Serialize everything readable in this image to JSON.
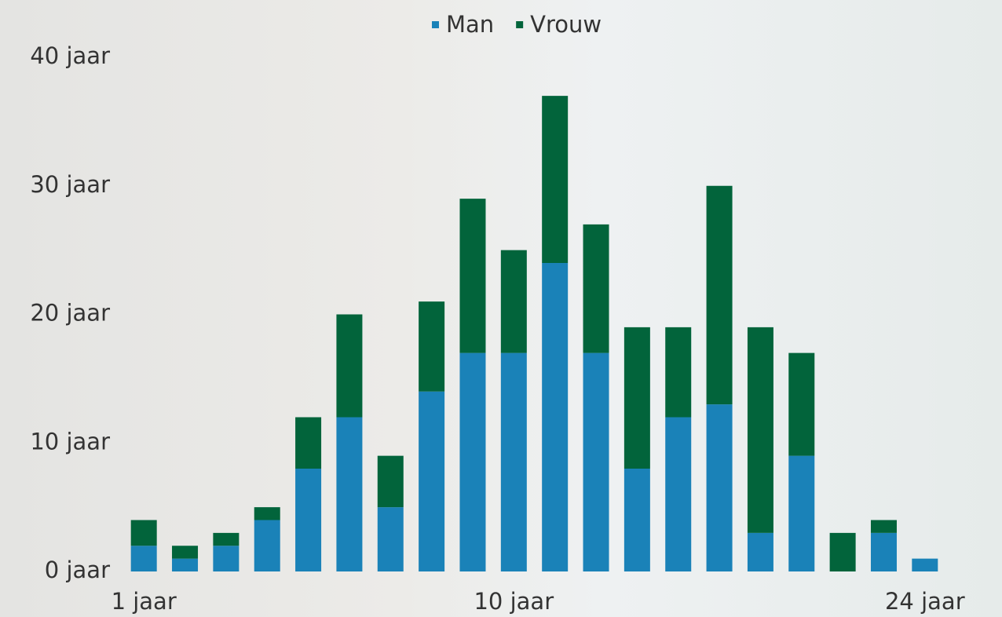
{
  "chart_data": {
    "type": "stacked_bar",
    "categories": [
      "1 jaar",
      null,
      null,
      null,
      null,
      null,
      null,
      null,
      null,
      "10 jaar",
      null,
      null,
      null,
      null,
      null,
      null,
      null,
      null,
      null,
      "24 jaar"
    ],
    "series": [
      {
        "name": "Man",
        "color": "#1a82b8",
        "values": [
          2,
          1,
          2,
          4,
          8,
          12,
          5,
          14,
          17,
          17,
          24,
          17,
          8,
          12,
          13,
          3,
          9,
          0,
          3,
          1
        ]
      },
      {
        "name": "Vrouw",
        "color": "#02643b",
        "values": [
          2,
          1,
          1,
          1,
          4,
          8,
          4,
          7,
          12,
          8,
          13,
          10,
          11,
          7,
          17,
          16,
          8,
          3,
          1,
          0
        ]
      }
    ],
    "ylim": [
      0,
      40
    ],
    "yticks": [
      {
        "value": 0,
        "label": "0 jaar"
      },
      {
        "value": 10,
        "label": "10 jaar"
      },
      {
        "value": 20,
        "label": "20 jaar"
      },
      {
        "value": 30,
        "label": "30 jaar"
      },
      {
        "value": 40,
        "label": "40 jaar"
      }
    ],
    "legend": "top"
  }
}
